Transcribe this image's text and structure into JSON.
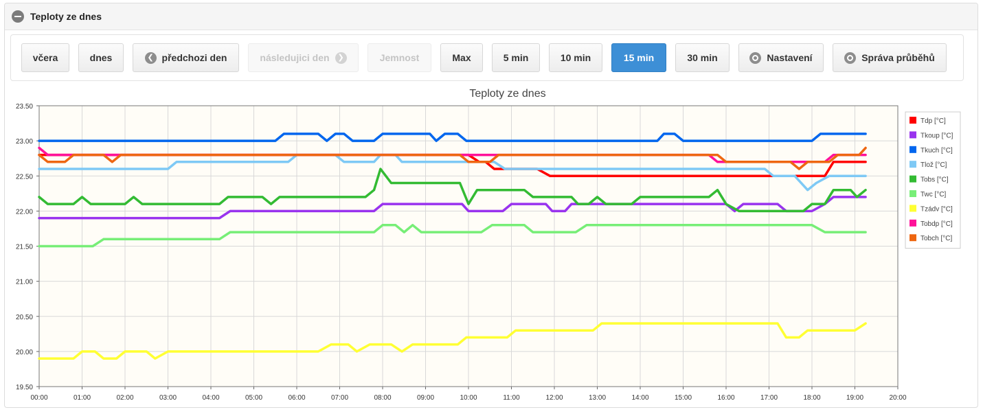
{
  "panel": {
    "title": "Teploty ze dnes"
  },
  "toolbar": {
    "buttons": [
      {
        "label": "včera"
      },
      {
        "label": "dnes"
      },
      {
        "label": "předchozi den"
      },
      {
        "label": "následujici den"
      },
      {
        "label": "Jemnost"
      },
      {
        "label": "Max"
      },
      {
        "label": "5 min"
      },
      {
        "label": "10 min"
      },
      {
        "label": "15 min"
      },
      {
        "label": "30 min"
      },
      {
        "label": "Nastavení"
      },
      {
        "label": "Správa průběhů"
      }
    ],
    "active": "15 min"
  },
  "chart_data": {
    "type": "line",
    "title": "Teploty ze dnes",
    "ylim": [
      19.5,
      23.5
    ],
    "y_ticks": [
      "23.50",
      "23.00",
      "22.50",
      "22.00",
      "21.50",
      "21.00",
      "20.50",
      "20.00",
      "19.50"
    ],
    "x_ticks": [
      "00:00",
      "01:00",
      "02:00",
      "03:00",
      "04:00",
      "05:00",
      "06:00",
      "07:00",
      "08:00",
      "09:00",
      "10:00",
      "11:00",
      "12:00",
      "13:00",
      "14:00",
      "15:00",
      "16:00",
      "17:00",
      "18:00",
      "19:00",
      "20:00"
    ],
    "xlim": [
      0,
      20
    ],
    "grid": true,
    "legend_position": "right",
    "series": [
      {
        "name": "Tdp [°C]",
        "color": "#ff0000",
        "points": [
          [
            0,
            22.8
          ],
          [
            10.0,
            22.8
          ],
          [
            10.25,
            22.7
          ],
          [
            10.4,
            22.7
          ],
          [
            10.6,
            22.6
          ],
          [
            11.6,
            22.6
          ],
          [
            11.9,
            22.5
          ],
          [
            18.3,
            22.5
          ],
          [
            18.5,
            22.7
          ],
          [
            19.25,
            22.7
          ]
        ]
      },
      {
        "name": "Tkoup [°C]",
        "color": "#9933ee",
        "points": [
          [
            0,
            21.9
          ],
          [
            4.2,
            21.9
          ],
          [
            4.45,
            22.0
          ],
          [
            7.8,
            22.0
          ],
          [
            8.0,
            22.1
          ],
          [
            9.85,
            22.1
          ],
          [
            10.0,
            22.0
          ],
          [
            10.8,
            22.0
          ],
          [
            11.0,
            22.1
          ],
          [
            11.8,
            22.1
          ],
          [
            11.95,
            22.0
          ],
          [
            12.25,
            22.0
          ],
          [
            12.4,
            22.1
          ],
          [
            15.8,
            22.1
          ],
          [
            16.0,
            22.1
          ],
          [
            16.2,
            22.0
          ],
          [
            16.4,
            22.1
          ],
          [
            17.2,
            22.1
          ],
          [
            17.4,
            22.0
          ],
          [
            18.0,
            22.0
          ],
          [
            18.3,
            22.1
          ],
          [
            18.5,
            22.2
          ],
          [
            19.25,
            22.2
          ]
        ]
      },
      {
        "name": "Tkuch [°C]",
        "color": "#0066ee",
        "points": [
          [
            0,
            23.0
          ],
          [
            5.5,
            23.0
          ],
          [
            5.7,
            23.1
          ],
          [
            6.5,
            23.1
          ],
          [
            6.7,
            23.0
          ],
          [
            6.9,
            23.1
          ],
          [
            7.1,
            23.1
          ],
          [
            7.3,
            23.0
          ],
          [
            7.8,
            23.0
          ],
          [
            8.0,
            23.1
          ],
          [
            9.1,
            23.1
          ],
          [
            9.25,
            23.0
          ],
          [
            9.45,
            23.1
          ],
          [
            9.75,
            23.1
          ],
          [
            9.95,
            23.0
          ],
          [
            14.4,
            23.0
          ],
          [
            14.55,
            23.1
          ],
          [
            14.8,
            23.1
          ],
          [
            15.0,
            23.0
          ],
          [
            18.0,
            23.0
          ],
          [
            18.2,
            23.1
          ],
          [
            19.25,
            23.1
          ]
        ]
      },
      {
        "name": "Tlož [°C]",
        "color": "#7ec9f5",
        "points": [
          [
            0,
            22.6
          ],
          [
            3.0,
            22.6
          ],
          [
            3.2,
            22.7
          ],
          [
            5.8,
            22.7
          ],
          [
            6.0,
            22.8
          ],
          [
            6.9,
            22.8
          ],
          [
            7.1,
            22.7
          ],
          [
            7.8,
            22.7
          ],
          [
            7.95,
            22.8
          ],
          [
            8.3,
            22.8
          ],
          [
            8.45,
            22.7
          ],
          [
            10.6,
            22.7
          ],
          [
            10.85,
            22.6
          ],
          [
            15.9,
            22.6
          ],
          [
            16.0,
            22.6
          ],
          [
            16.5,
            22.6
          ],
          [
            16.9,
            22.6
          ],
          [
            17.1,
            22.5
          ],
          [
            17.6,
            22.5
          ],
          [
            17.9,
            22.3
          ],
          [
            18.1,
            22.4
          ],
          [
            18.4,
            22.5
          ],
          [
            19.25,
            22.5
          ]
        ]
      },
      {
        "name": "Tobs [°C]",
        "color": "#33bb33",
        "points": [
          [
            0,
            22.2
          ],
          [
            0.2,
            22.1
          ],
          [
            0.8,
            22.1
          ],
          [
            1.0,
            22.2
          ],
          [
            1.2,
            22.1
          ],
          [
            2.0,
            22.1
          ],
          [
            2.2,
            22.2
          ],
          [
            2.4,
            22.1
          ],
          [
            4.2,
            22.1
          ],
          [
            4.4,
            22.2
          ],
          [
            5.2,
            22.2
          ],
          [
            5.4,
            22.1
          ],
          [
            5.6,
            22.2
          ],
          [
            7.6,
            22.2
          ],
          [
            7.8,
            22.3
          ],
          [
            7.95,
            22.6
          ],
          [
            8.2,
            22.4
          ],
          [
            9.8,
            22.4
          ],
          [
            10.0,
            22.1
          ],
          [
            10.2,
            22.3
          ],
          [
            11.3,
            22.3
          ],
          [
            11.5,
            22.2
          ],
          [
            12.4,
            22.2
          ],
          [
            12.55,
            22.1
          ],
          [
            12.8,
            22.1
          ],
          [
            13.0,
            22.2
          ],
          [
            13.2,
            22.1
          ],
          [
            13.8,
            22.1
          ],
          [
            14.0,
            22.2
          ],
          [
            15.6,
            22.2
          ],
          [
            15.8,
            22.3
          ],
          [
            16.0,
            22.1
          ],
          [
            16.3,
            22.0
          ],
          [
            17.5,
            22.0
          ],
          [
            17.8,
            22.0
          ],
          [
            18.0,
            22.1
          ],
          [
            18.3,
            22.1
          ],
          [
            18.5,
            22.3
          ],
          [
            18.9,
            22.3
          ],
          [
            19.05,
            22.2
          ],
          [
            19.25,
            22.3
          ]
        ]
      },
      {
        "name": "Twc [°C]",
        "color": "#77ee77",
        "points": [
          [
            0,
            21.5
          ],
          [
            1.25,
            21.5
          ],
          [
            1.5,
            21.6
          ],
          [
            4.2,
            21.6
          ],
          [
            4.45,
            21.7
          ],
          [
            7.8,
            21.7
          ],
          [
            8.0,
            21.8
          ],
          [
            8.3,
            21.8
          ],
          [
            8.5,
            21.7
          ],
          [
            8.7,
            21.8
          ],
          [
            8.9,
            21.7
          ],
          [
            10.3,
            21.7
          ],
          [
            10.55,
            21.8
          ],
          [
            11.3,
            21.8
          ],
          [
            11.5,
            21.7
          ],
          [
            12.5,
            21.7
          ],
          [
            12.75,
            21.8
          ],
          [
            18.0,
            21.8
          ],
          [
            18.3,
            21.7
          ],
          [
            19.25,
            21.7
          ]
        ]
      },
      {
        "name": "Tzádv [°C]",
        "color": "#ffff33",
        "points": [
          [
            0,
            19.9
          ],
          [
            0.8,
            19.9
          ],
          [
            1.0,
            20.0
          ],
          [
            1.3,
            20.0
          ],
          [
            1.5,
            19.9
          ],
          [
            1.8,
            19.9
          ],
          [
            2.0,
            20.0
          ],
          [
            2.5,
            20.0
          ],
          [
            2.7,
            19.9
          ],
          [
            3.0,
            20.0
          ],
          [
            6.5,
            20.0
          ],
          [
            6.8,
            20.1
          ],
          [
            7.2,
            20.1
          ],
          [
            7.4,
            20.0
          ],
          [
            7.7,
            20.1
          ],
          [
            8.2,
            20.1
          ],
          [
            8.45,
            20.0
          ],
          [
            8.7,
            20.1
          ],
          [
            9.75,
            20.1
          ],
          [
            9.95,
            20.2
          ],
          [
            10.9,
            20.2
          ],
          [
            11.1,
            20.3
          ],
          [
            12.9,
            20.3
          ],
          [
            13.1,
            20.4
          ],
          [
            17.2,
            20.4
          ],
          [
            17.4,
            20.2
          ],
          [
            17.7,
            20.2
          ],
          [
            17.9,
            20.3
          ],
          [
            19.0,
            20.3
          ],
          [
            19.25,
            20.4
          ]
        ]
      },
      {
        "name": "Tobdp [°C]",
        "color": "#ff1199",
        "points": [
          [
            0,
            22.9
          ],
          [
            0.2,
            22.8
          ],
          [
            15.6,
            22.8
          ],
          [
            15.8,
            22.7
          ],
          [
            17.8,
            22.7
          ],
          [
            18.3,
            22.7
          ],
          [
            18.5,
            22.8
          ],
          [
            19.25,
            22.8
          ]
        ]
      },
      {
        "name": "Tobch [°C]",
        "color": "#ee6611",
        "points": [
          [
            0,
            22.8
          ],
          [
            0.2,
            22.7
          ],
          [
            0.6,
            22.7
          ],
          [
            0.8,
            22.8
          ],
          [
            1.5,
            22.8
          ],
          [
            1.7,
            22.7
          ],
          [
            1.9,
            22.8
          ],
          [
            9.8,
            22.8
          ],
          [
            10.0,
            22.7
          ],
          [
            10.5,
            22.7
          ],
          [
            10.7,
            22.8
          ],
          [
            15.8,
            22.8
          ],
          [
            16.0,
            22.7
          ],
          [
            17.5,
            22.7
          ],
          [
            17.7,
            22.6
          ],
          [
            17.9,
            22.7
          ],
          [
            18.4,
            22.7
          ],
          [
            18.6,
            22.8
          ],
          [
            19.1,
            22.8
          ],
          [
            19.25,
            22.9
          ]
        ]
      }
    ]
  }
}
